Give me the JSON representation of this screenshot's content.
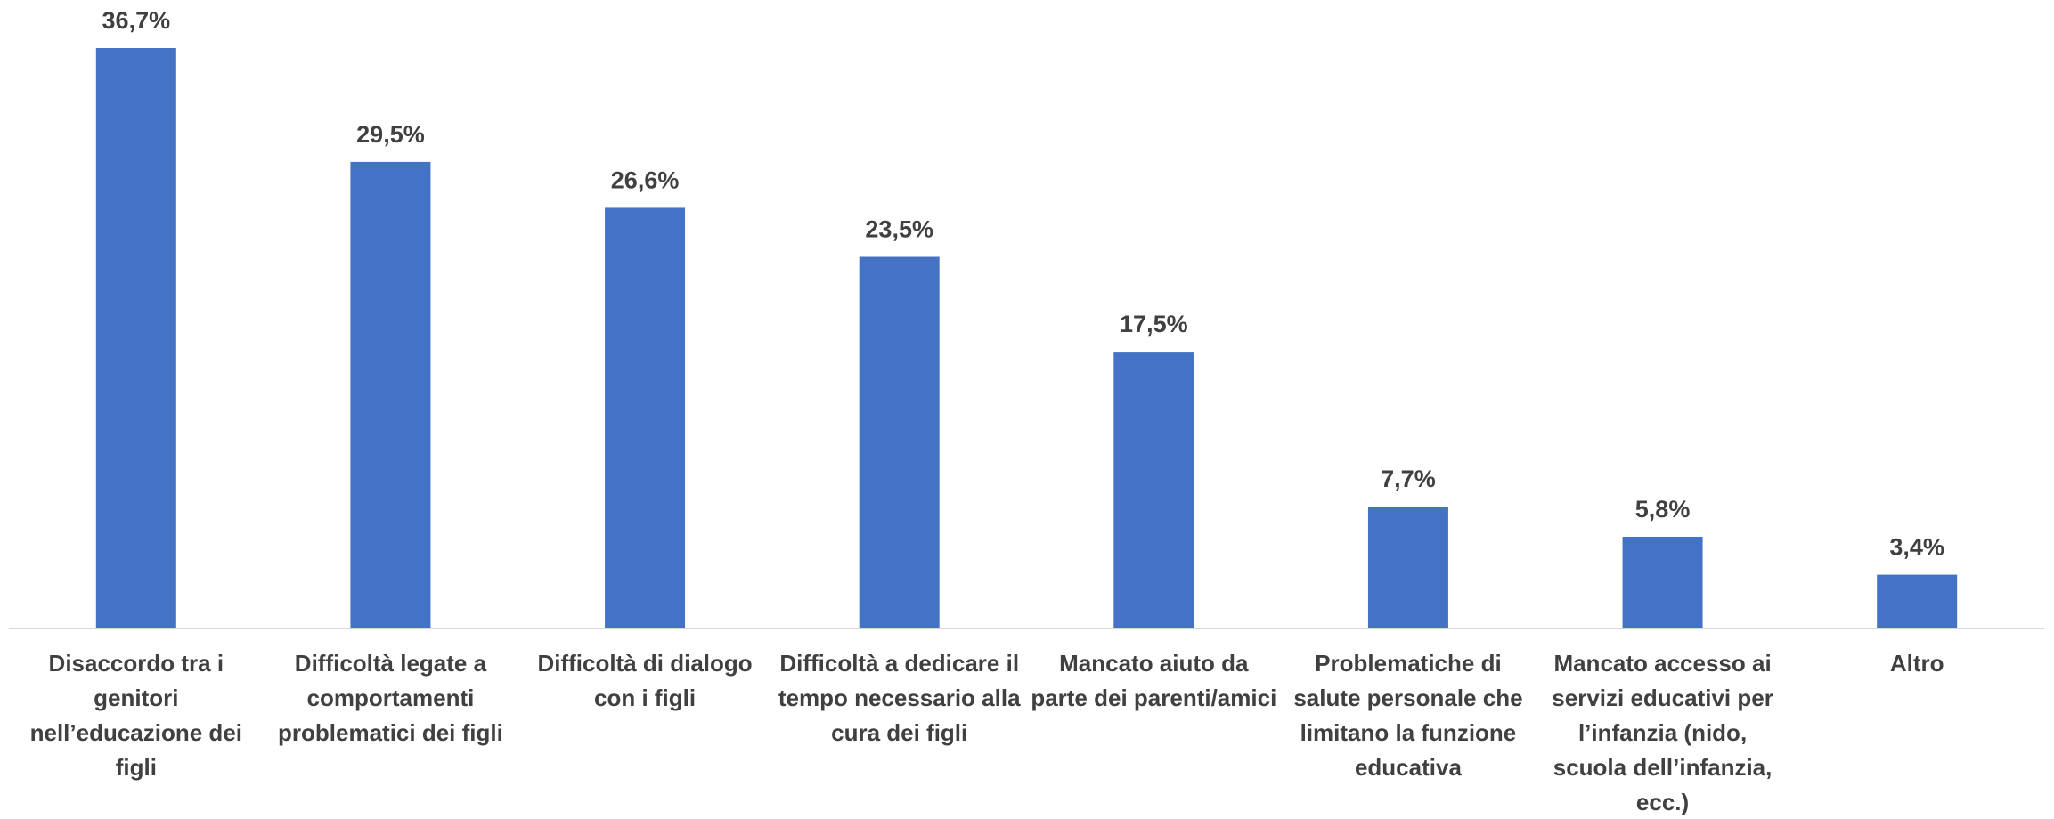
{
  "chart_data": {
    "type": "bar",
    "categories": [
      "Disaccordo tra i genitori nell’educazione dei figli",
      "Difficoltà legate a comportamenti problematici dei figli",
      "Difficoltà di dialogo con i figli",
      "Difficoltà a dedicare il tempo necessario alla cura dei figli",
      "Mancato aiuto da parte dei parenti/amici",
      "Problematiche di salute personale che limitano la funzione educativa",
      "Mancato accesso ai servizi educativi per l’infanzia (nido, scuola dell’infanzia, ecc.)",
      "Altro"
    ],
    "values": [
      36.7,
      29.5,
      26.6,
      23.5,
      17.5,
      7.7,
      5.8,
      3.4
    ],
    "value_labels": [
      "36,7%",
      "29,5%",
      "26,6%",
      "23,5%",
      "17,5%",
      "7,7%",
      "5,8%",
      "3,4%"
    ],
    "color": "#4472c4"
  }
}
